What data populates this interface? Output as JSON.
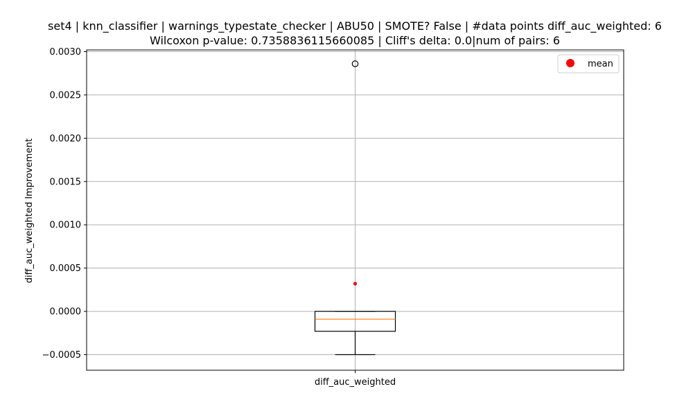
{
  "chart_data": {
    "type": "box",
    "title_line1": "set4 | knn_classifier | warnings_typestate_checker | ABU50 | SMOTE? False | #data points diff_auc_weighted: 6",
    "title_line2": "Wilcoxon p-value: 0.7358836115660085 | Cliff's delta: 0.0|num of pairs: 6",
    "xlabel": "",
    "ylabel": "diff_auc_weighted Improvement",
    "categories": [
      "diff_auc_weighted"
    ],
    "ylim": [
      -0.00068,
      0.00302
    ],
    "yticks": [
      -0.0005,
      0.0,
      0.0005,
      0.001,
      0.0015,
      0.002,
      0.0025,
      0.003
    ],
    "ytick_labels": [
      "−0.0005",
      "0.0000",
      "0.0005",
      "0.0010",
      "0.0015",
      "0.0020",
      "0.0025",
      "0.0030"
    ],
    "grid": true,
    "legend": {
      "position": "top-right",
      "entries": [
        {
          "label": "mean",
          "color": "#ff0000"
        }
      ]
    },
    "box": {
      "whisker_low": -0.0005,
      "q1": -0.00023,
      "median": -9e-05,
      "q3": 0.0,
      "whisker_high": 0.0,
      "outliers": [
        0.00286
      ],
      "mean": 0.00032
    },
    "colors": {
      "median": "#ff7f0e",
      "mean": "#ff0000",
      "box": "#000000",
      "grid": "#b0b0b0"
    }
  }
}
